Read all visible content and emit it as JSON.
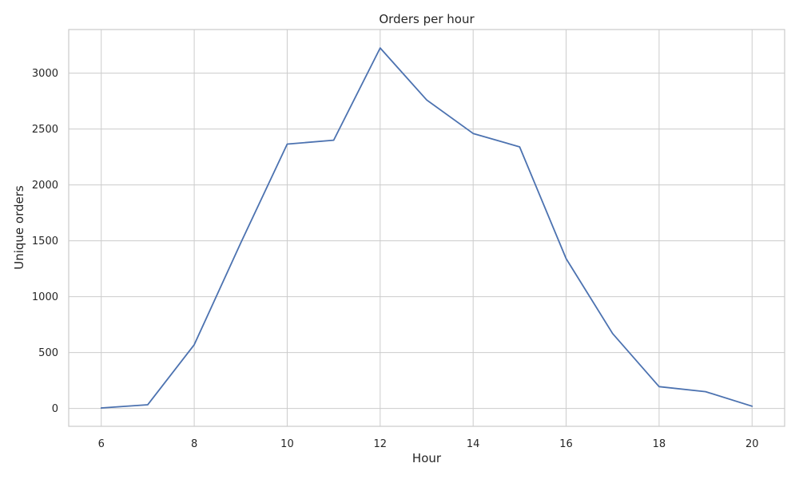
{
  "chart_data": {
    "type": "line",
    "title": "Orders per hour",
    "xlabel": "Hour",
    "ylabel": "Unique orders",
    "x": [
      6,
      7,
      8,
      9,
      10,
      11,
      12,
      13,
      14,
      15,
      16,
      17,
      18,
      19,
      20
    ],
    "series": [
      {
        "values": [
          4,
          33,
          570,
          1480,
          2365,
          2400,
          3225,
          2760,
          2460,
          2340,
          1340,
          670,
          195,
          150,
          20
        ],
        "color": "#4c72b0"
      }
    ],
    "xlim": [
      5.3,
      20.7
    ],
    "ylim": [
      -160,
      3390
    ],
    "xticks": [
      "6",
      "8",
      "10",
      "12",
      "14",
      "16",
      "18",
      "20"
    ],
    "yticks": [
      "0",
      "500",
      "1000",
      "1500",
      "2000",
      "2500",
      "3000"
    ],
    "grid": true
  }
}
